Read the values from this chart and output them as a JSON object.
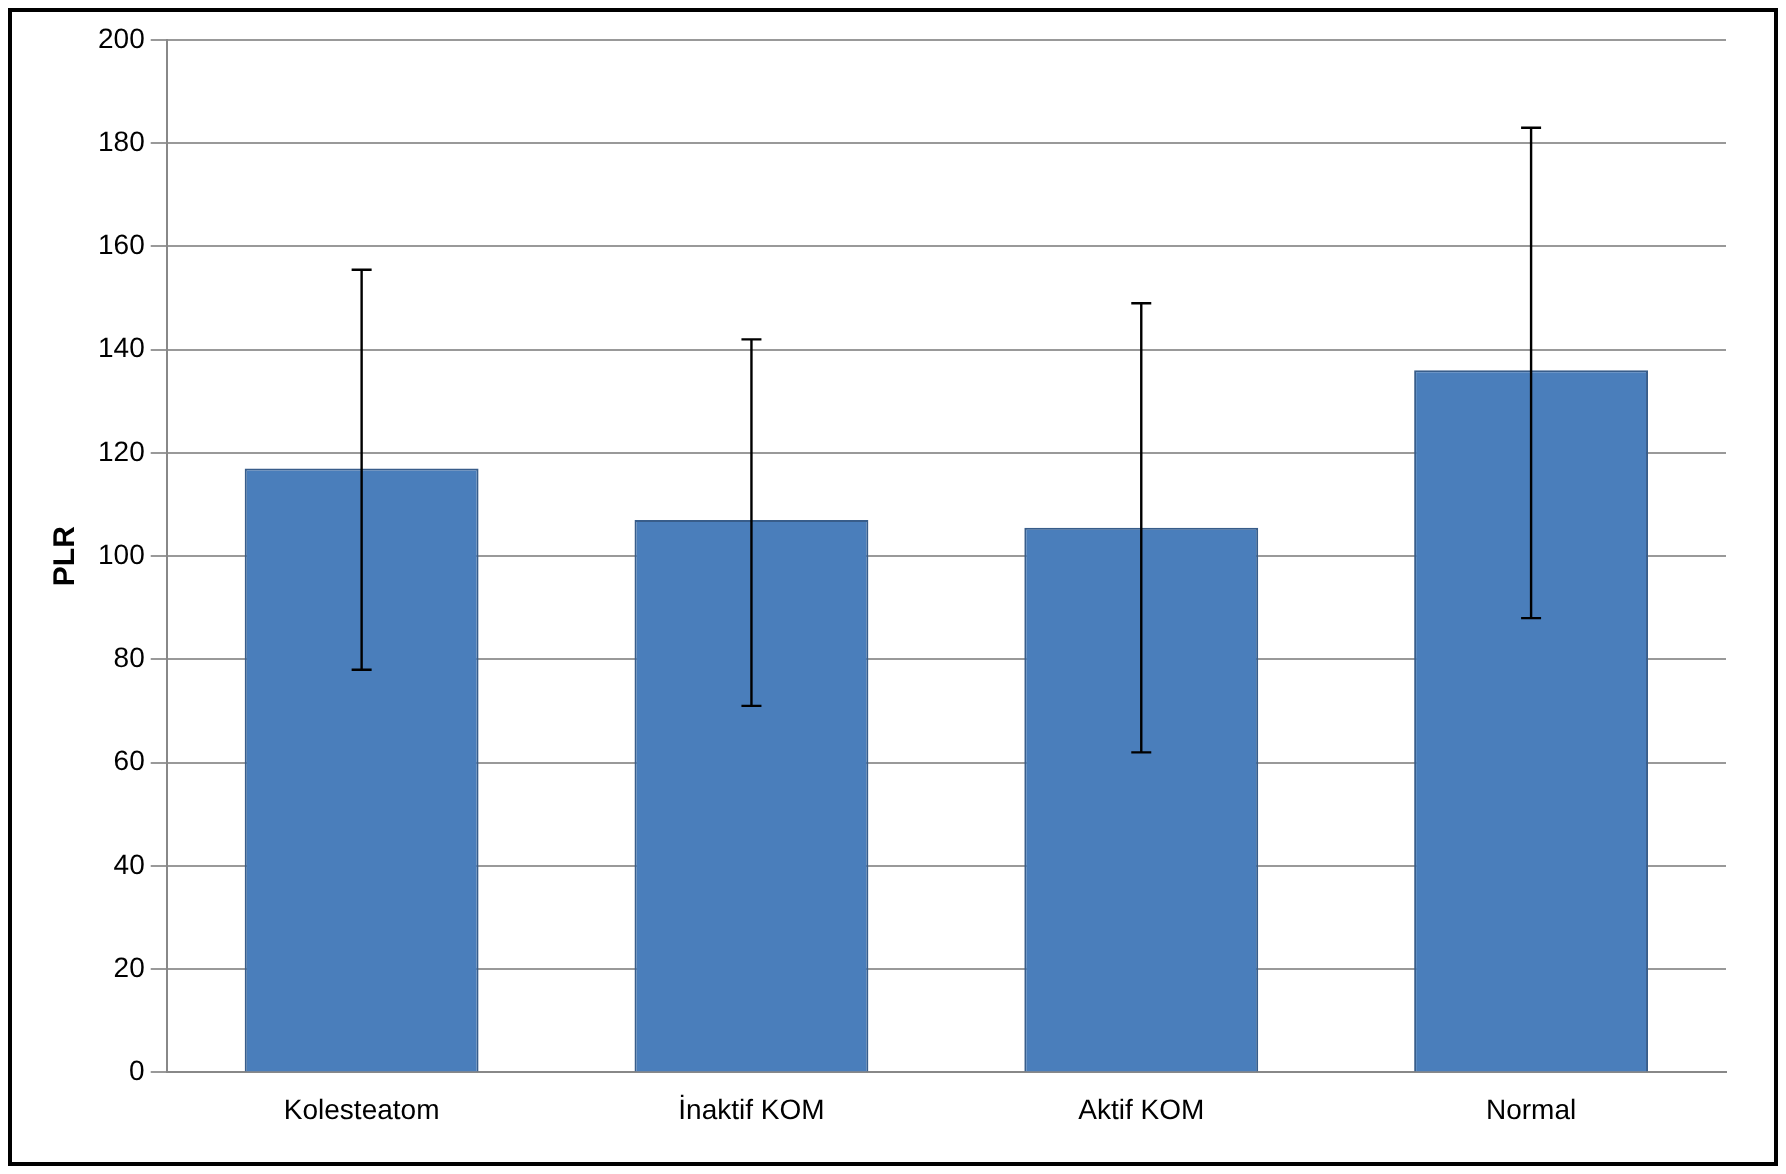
{
  "chart_data": {
    "type": "bar",
    "ylabel": "PLR",
    "categories": [
      "Kolesteatom",
      "İnaktif KOM",
      "Aktif KOM",
      "Normal"
    ],
    "values": [
      117,
      107,
      105.5,
      136
    ],
    "errors": [
      [
        78,
        155.5
      ],
      [
        71,
        142
      ],
      [
        62,
        149
      ],
      [
        88,
        183
      ]
    ],
    "color": "#4a7ebb",
    "ylim": [
      0,
      200
    ],
    "yticks": [
      0,
      20,
      40,
      60,
      80,
      100,
      120,
      140,
      160,
      180,
      200
    ],
    "grid": "y",
    "legend": false
  }
}
